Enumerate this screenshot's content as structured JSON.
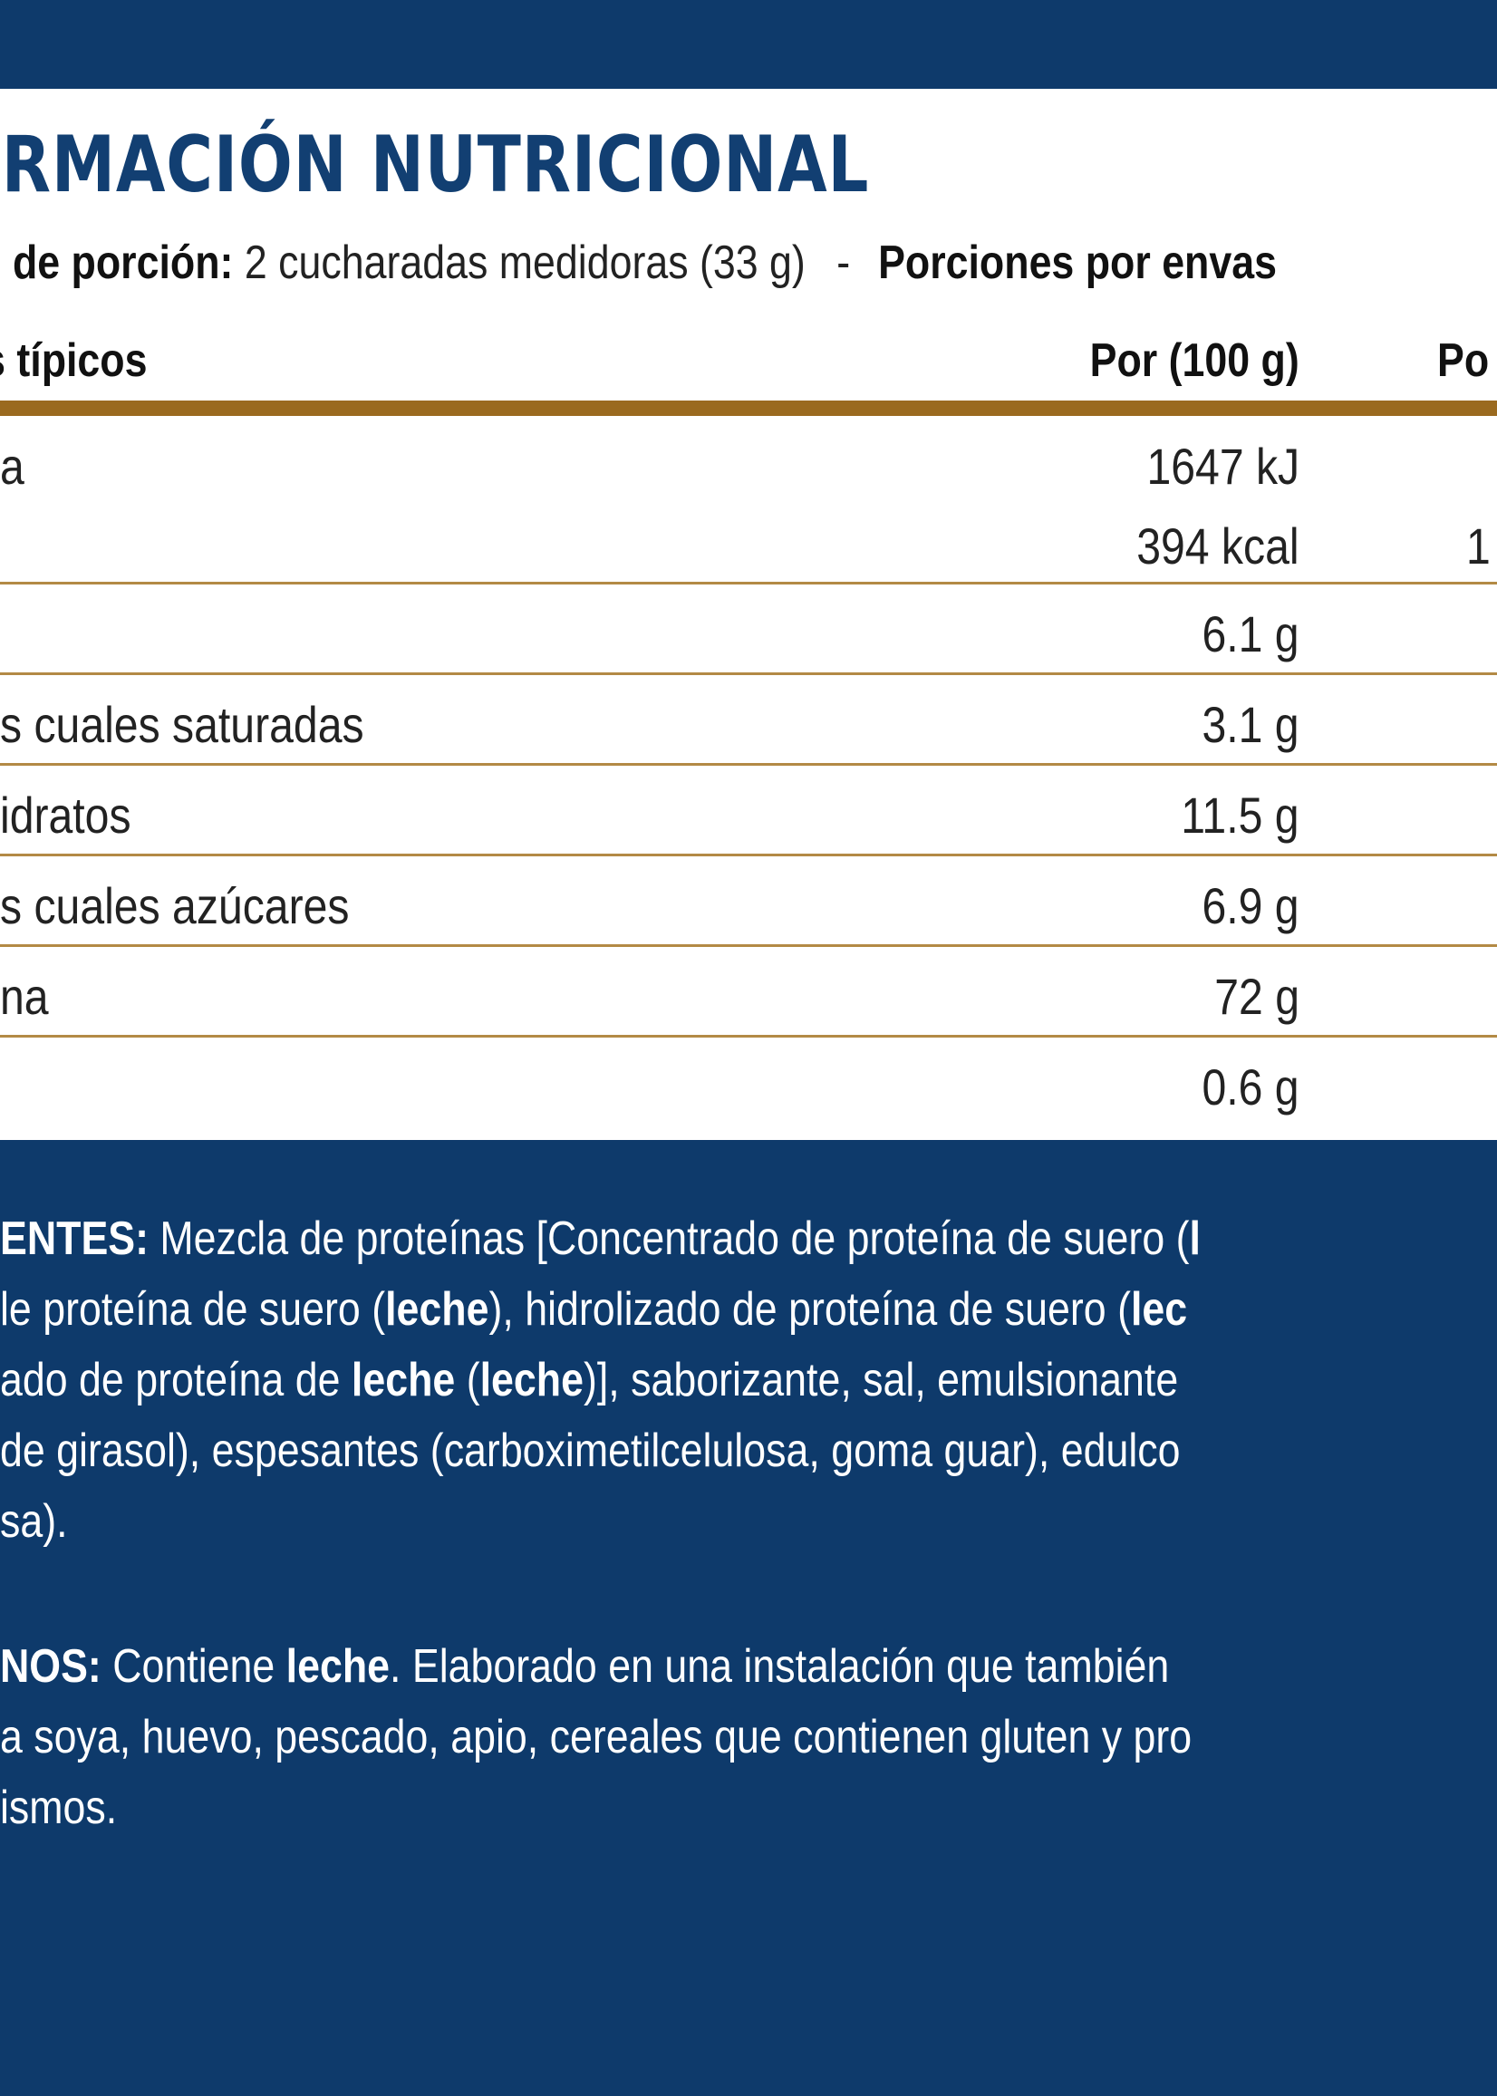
{
  "title": "ORMACIÓN NUTRICIONAL",
  "serving": {
    "size_label": "o de porción:",
    "size_value": "2 cucharadas medidoras (33 g)",
    "separator": "-",
    "servings_label": "Porciones por envas"
  },
  "table": {
    "headers": {
      "typical": "s típicos",
      "per100": "Por (100 g)",
      "perportion": "Po"
    },
    "rows": [
      {
        "label": "a",
        "per100": "1647 kJ",
        "perportion": ""
      },
      {
        "label": "",
        "per100": "394 kcal",
        "perportion": "1"
      },
      {
        "label": "",
        "per100": "6.1 g",
        "perportion": ""
      },
      {
        "label": "s cuales saturadas",
        "per100": "3.1 g",
        "perportion": ""
      },
      {
        "label": "idratos",
        "per100": "11.5 g",
        "perportion": ""
      },
      {
        "label": "s cuales azúcares",
        "per100": "6.9 g",
        "perportion": ""
      },
      {
        "label": "na",
        "per100": "72 g",
        "perportion": ""
      },
      {
        "label": "",
        "per100": "0.6 g",
        "perportion": ""
      }
    ]
  },
  "ingredients": {
    "heading": "ENTES:",
    "lines": [
      [
        "Mezcla de proteínas [Concentrado de proteína de suero (",
        {
          "b": "l"
        }
      ],
      [
        "le proteína de suero (",
        {
          "b": "leche"
        },
        "), hidrolizado de proteína de suero (",
        {
          "b": "lec"
        }
      ],
      [
        "ado de proteína de ",
        {
          "b": "leche"
        },
        " (",
        {
          "b": "leche"
        },
        ")], saborizante, sal, emulsionante"
      ],
      [
        "de girasol), espesantes (carboximetilcelulosa, goma guar), edulco"
      ],
      [
        "sa)."
      ]
    ]
  },
  "allergens": {
    "heading": "NOS:",
    "lines": [
      [
        "Contiene ",
        {
          "b": "leche"
        },
        ". Elaborado en una instalación que también"
      ],
      [
        "a soya, huevo, pescado, apio, cereales que contienen gluten y pro"
      ],
      [
        "ismos."
      ]
    ]
  },
  "colors": {
    "background": "#0e3a6b",
    "panel": "#ffffff",
    "title": "#123f72",
    "rule": "#9a6a1f"
  }
}
